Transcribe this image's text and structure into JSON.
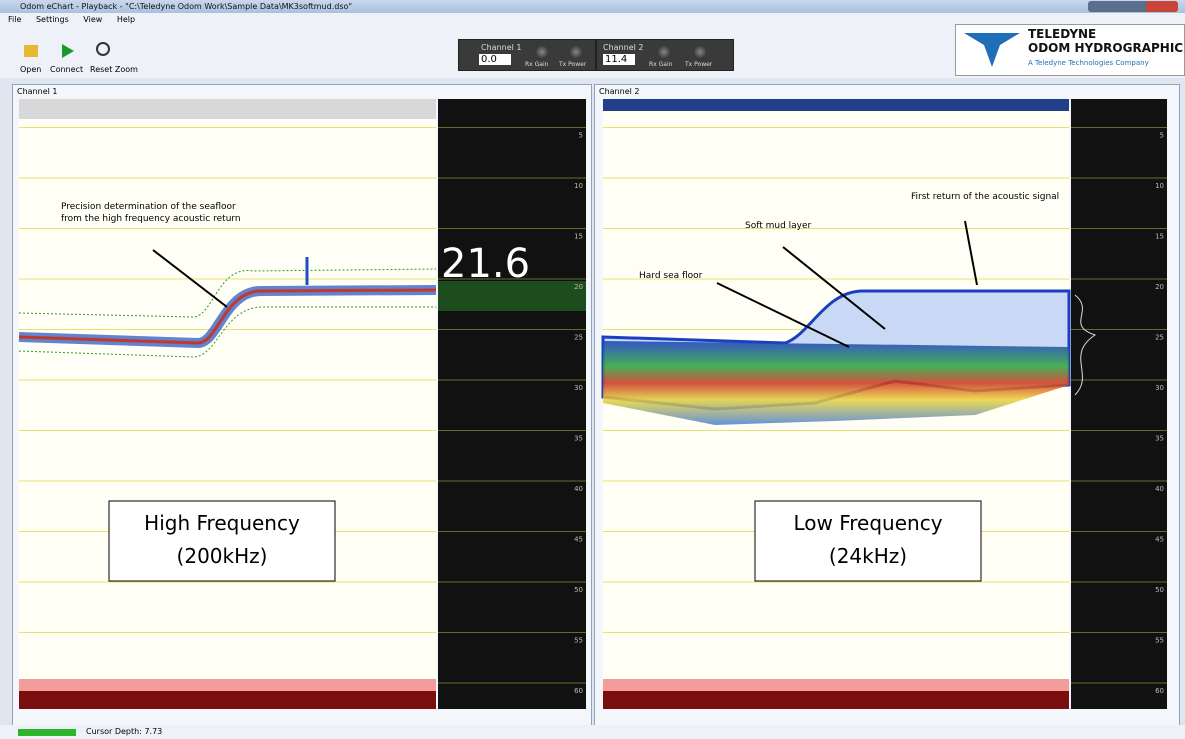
{
  "window": {
    "title": "Odom eChart - Playback - \"C:\\Teledyne Odom Work\\Sample Data\\MK3softmud.dso\""
  },
  "menu": [
    "File",
    "Settings",
    "View",
    "Help"
  ],
  "toolbar": [
    "Open",
    "Connect",
    "Reset Zoom"
  ],
  "channel_controls": [
    {
      "label": "Channel 1",
      "value": "0.0",
      "knobs": [
        "Rx Gain",
        "Tx Power"
      ]
    },
    {
      "label": "Channel 2",
      "value": "11.4",
      "knobs": [
        "Rx Gain",
        "Tx Power"
      ]
    }
  ],
  "logo": {
    "name": "TELEDYNE",
    "division": "ODOM HYDROGRAPHIC",
    "tagline": "A Teledyne Technologies Company"
  },
  "depth_scale": {
    "ticks": [
      5,
      10,
      15,
      20,
      25,
      30,
      35,
      40,
      45,
      50,
      55,
      60
    ]
  },
  "panels": [
    {
      "title": "Channel 1",
      "depth_readout": "21.6",
      "annotations": [
        "Precision determination of the seafloor from the high frequency acoustic return"
      ],
      "box": [
        "High Frequency",
        "(200kHz)"
      ]
    },
    {
      "title": "Channel 2",
      "annotations": [
        "First return of the acoustic signal",
        "Soft mud layer",
        "Hard sea floor"
      ],
      "box": [
        "Low Frequency",
        "(24kHz)"
      ]
    }
  ],
  "status": {
    "cursor_depth": "Cursor Depth: 7.73"
  }
}
